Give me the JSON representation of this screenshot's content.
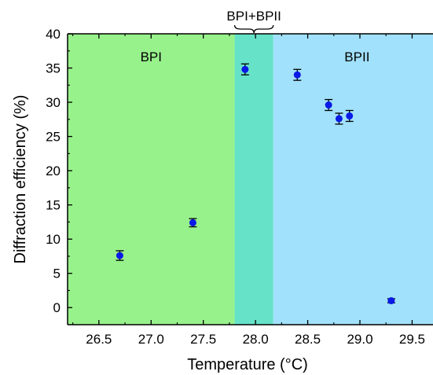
{
  "chart_data": {
    "type": "scatter",
    "title": "",
    "xlabel": "Temperature (°C)",
    "ylabel": "Diffraction efficiency (%)",
    "xlim": [
      26.2,
      29.7
    ],
    "ylim": [
      -2.5,
      40
    ],
    "xticks": [
      26.5,
      27.0,
      27.5,
      28.0,
      28.5,
      29.0,
      29.5
    ],
    "xtick_labels": [
      "26.5",
      "27.0",
      "27.5",
      "28.0",
      "28.5",
      "29.0",
      "29.5"
    ],
    "yticks": [
      0,
      5,
      10,
      15,
      20,
      25,
      30,
      35,
      40
    ],
    "ytick_labels": [
      "0",
      "5",
      "10",
      "15",
      "20",
      "25",
      "30",
      "35",
      "40"
    ],
    "grid": false,
    "regions": [
      {
        "label": "BPI",
        "x_start": 26.2,
        "x_end": 27.8,
        "color": "#98f28c"
      },
      {
        "label": "BPI+BPII",
        "x_start": 27.8,
        "x_end": 28.17,
        "color": "#66e2c8"
      },
      {
        "label": "BPII",
        "x_start": 28.17,
        "x_end": 29.7,
        "color": "#a1e1fb"
      }
    ],
    "points": [
      {
        "x": 26.7,
        "y": 7.6,
        "err": 0.7
      },
      {
        "x": 27.4,
        "y": 12.4,
        "err": 0.6
      },
      {
        "x": 27.9,
        "y": 34.8,
        "err": 0.8
      },
      {
        "x": 28.4,
        "y": 34.0,
        "err": 0.8
      },
      {
        "x": 28.7,
        "y": 29.6,
        "err": 0.8
      },
      {
        "x": 28.8,
        "y": 27.6,
        "err": 0.8
      },
      {
        "x": 28.9,
        "y": 28.0,
        "err": 0.8
      },
      {
        "x": 29.3,
        "y": 1.0,
        "err": 0.3
      }
    ],
    "marker_color": "#0a1ae6"
  }
}
